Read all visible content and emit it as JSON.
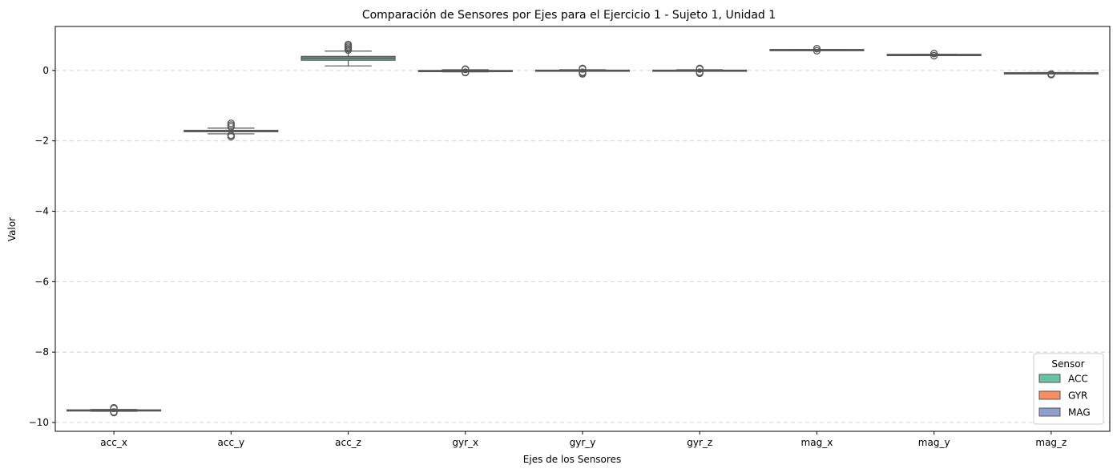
{
  "chart_data": {
    "type": "box",
    "title": "Comparación de Sensores por Ejes para el Ejercicio 1 - Sujeto 1, Unidad 1",
    "xlabel": "Ejes de los Sensores",
    "ylabel": "Valor",
    "ylim": [
      -10.25,
      1.25
    ],
    "yticks": [
      0,
      -2,
      -4,
      -6,
      -8,
      -10
    ],
    "ytick_labels": [
      "0",
      "−2",
      "−4",
      "−6",
      "−8",
      "−10"
    ],
    "grid": "y-dashed",
    "categories": [
      "acc_x",
      "acc_y",
      "acc_z",
      "gyr_x",
      "gyr_y",
      "gyr_z",
      "mag_x",
      "mag_y",
      "mag_z"
    ],
    "boxes": [
      {
        "category": "acc_x",
        "sensor": "ACC",
        "whisker_low": -9.68,
        "q1": -9.67,
        "median": -9.655,
        "q3": -9.64,
        "whisker_high": -9.63,
        "outliers": [
          -9.58,
          -9.6,
          -9.7,
          -9.72
        ]
      },
      {
        "category": "acc_y",
        "sensor": "ACC",
        "whisker_low": -1.8,
        "q1": -1.74,
        "median": -1.72,
        "q3": -1.7,
        "whisker_high": -1.64,
        "outliers": [
          -1.5,
          -1.55,
          -1.6,
          -1.84,
          -1.88
        ]
      },
      {
        "category": "acc_z",
        "sensor": "ACC",
        "whisker_low": 0.13,
        "q1": 0.29,
        "median": 0.35,
        "q3": 0.4,
        "whisker_high": 0.55,
        "outliers": [
          0.58,
          0.62,
          0.66,
          0.7,
          0.74
        ]
      },
      {
        "category": "gyr_x",
        "sensor": "GYR",
        "whisker_low": -0.04,
        "q1": -0.02,
        "median": -0.01,
        "q3": 0.0,
        "whisker_high": 0.02,
        "outliers": [
          -0.06,
          -0.05,
          0.03,
          0.04
        ]
      },
      {
        "category": "gyr_y",
        "sensor": "GYR",
        "whisker_low": -0.02,
        "q1": -0.01,
        "median": 0.0,
        "q3": 0.01,
        "whisker_high": 0.02,
        "outliers": [
          -0.1,
          -0.08,
          -0.05,
          0.04,
          0.06
        ]
      },
      {
        "category": "gyr_z",
        "sensor": "GYR",
        "whisker_low": -0.02,
        "q1": -0.01,
        "median": 0.0,
        "q3": 0.01,
        "whisker_high": 0.02,
        "outliers": [
          -0.08,
          -0.05,
          0.04,
          0.06
        ]
      },
      {
        "category": "mag_x",
        "sensor": "MAG",
        "whisker_low": 0.58,
        "q1": 0.585,
        "median": 0.59,
        "q3": 0.595,
        "whisker_high": 0.6,
        "outliers": [
          0.56,
          0.62
        ]
      },
      {
        "category": "mag_y",
        "sensor": "MAG",
        "whisker_low": 0.44,
        "q1": 0.445,
        "median": 0.45,
        "q3": 0.455,
        "whisker_high": 0.46,
        "outliers": [
          0.42,
          0.48
        ]
      },
      {
        "category": "mag_z",
        "sensor": "MAG",
        "whisker_low": -0.08,
        "q1": -0.075,
        "median": -0.07,
        "q3": -0.065,
        "whisker_high": -0.06,
        "outliers": [
          -0.1,
          -0.12
        ]
      }
    ],
    "legend": {
      "title": "Sensor",
      "position": "lower-right",
      "entries": [
        {
          "name": "ACC",
          "color": "#66c2a5"
        },
        {
          "name": "GYR",
          "color": "#fc8d62"
        },
        {
          "name": "MAG",
          "color": "#8da0cb"
        }
      ]
    },
    "colors": {
      "ACC": "#66c2a5",
      "GYR": "#fc8d62",
      "MAG": "#8da0cb",
      "line": "#555555",
      "grid": "#c8c8c8"
    }
  }
}
